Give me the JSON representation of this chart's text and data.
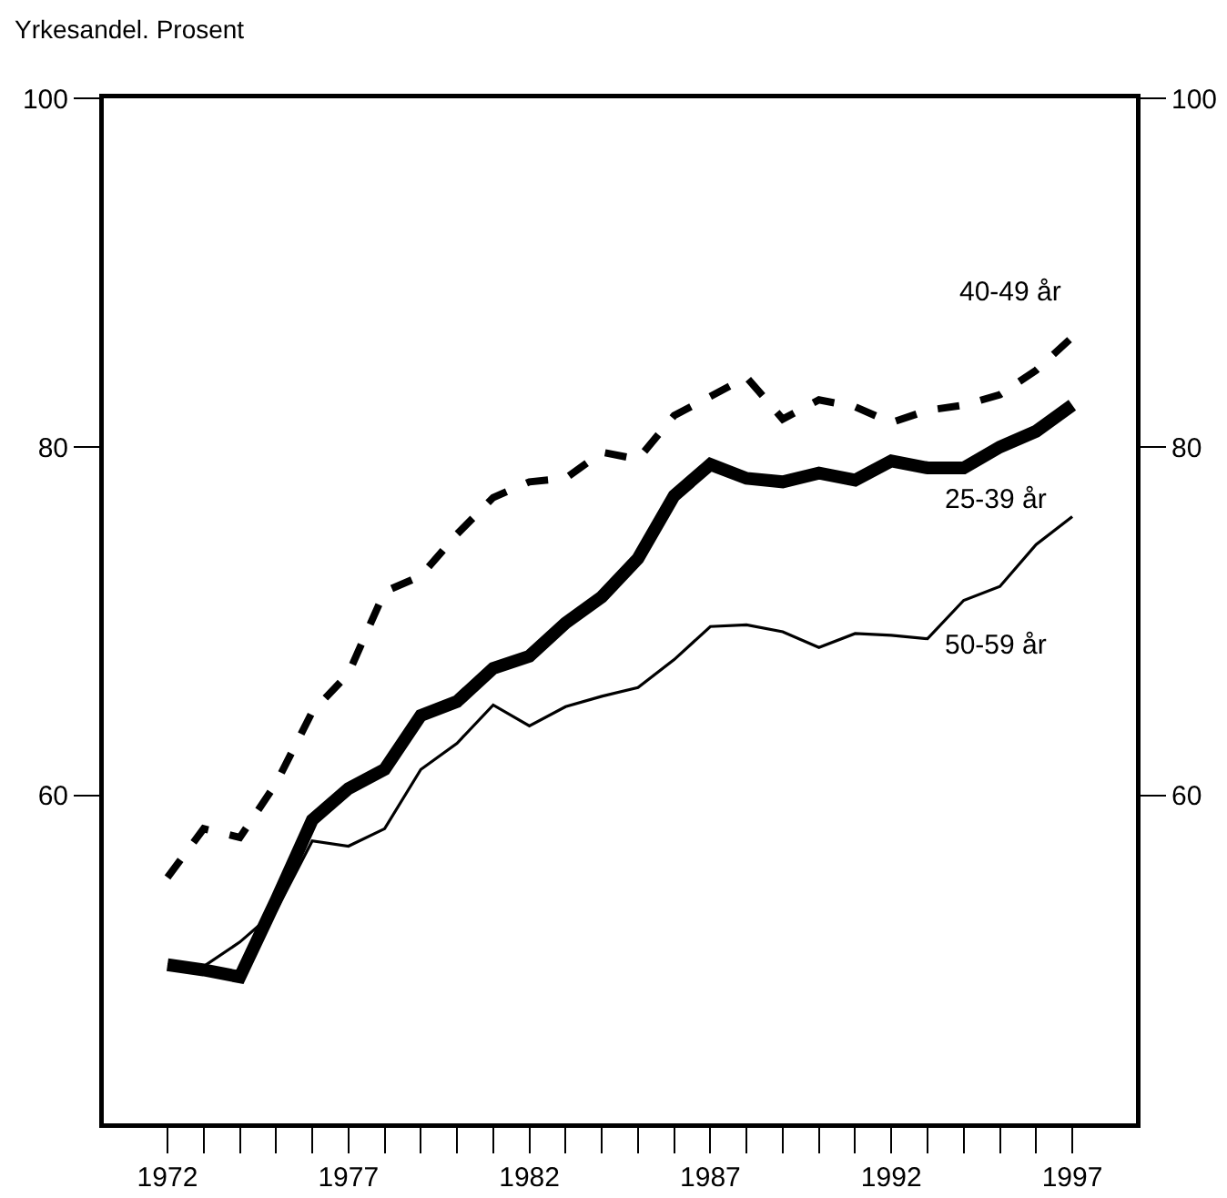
{
  "chart_data": {
    "type": "line",
    "ylabel": "Yrkesandel. Prosent",
    "x": [
      1972,
      1973,
      1974,
      1975,
      1976,
      1977,
      1978,
      1979,
      1980,
      1981,
      1982,
      1983,
      1984,
      1985,
      1986,
      1987,
      1988,
      1989,
      1990,
      1991,
      1992,
      1993,
      1994,
      1995,
      1996,
      1997
    ],
    "xlim": [
      1970.24,
      1998.76
    ],
    "xticks": [
      1972,
      {
        "value": 1973,
        "label": null
      },
      {
        "value": 1974,
        "label": null
      },
      {
        "value": 1975,
        "label": null
      },
      {
        "value": 1976,
        "label": null
      },
      1977,
      {
        "value": 1978,
        "label": null
      },
      {
        "value": 1979,
        "label": null
      },
      {
        "value": 1980,
        "label": null
      },
      {
        "value": 1981,
        "label": null
      },
      1982,
      {
        "value": 1983,
        "label": null
      },
      {
        "value": 1984,
        "label": null
      },
      {
        "value": 1985,
        "label": null
      },
      {
        "value": 1986,
        "label": null
      },
      1987,
      {
        "value": 1988,
        "label": null
      },
      {
        "value": 1989,
        "label": null
      },
      {
        "value": 1990,
        "label": null
      },
      {
        "value": 1991,
        "label": null
      },
      1992,
      {
        "value": 1993,
        "label": null
      },
      {
        "value": 1994,
        "label": null
      },
      {
        "value": 1995,
        "label": null
      },
      {
        "value": 1996,
        "label": null
      },
      1997
    ],
    "ylim": [
      41.2,
      100
    ],
    "yticks": [
      60,
      80,
      100
    ],
    "y2lim": [
      41.2,
      100
    ],
    "y2ticks": [
      60,
      80,
      100
    ],
    "grid": false,
    "legend": false,
    "marker": "none",
    "series": [
      {
        "name": "40-49 år",
        "color": "#000000",
        "line_style": "dashed",
        "values": [
          55.3,
          58.1,
          57.6,
          60.7,
          64.8,
          67.0,
          71.7,
          72.6,
          75.0,
          77.1,
          78.0,
          78.2,
          79.7,
          79.3,
          81.8,
          82.9,
          84.0,
          81.6,
          82.7,
          82.3,
          81.4,
          82.1,
          82.4,
          83.0,
          84.4,
          86.3
        ]
      },
      {
        "name": "25-39 år",
        "color": "#000000",
        "line_style": "solid",
        "values": [
          50.3,
          50.0,
          49.6,
          54.0,
          58.6,
          60.4,
          61.5,
          64.6,
          65.4,
          67.3,
          68.0,
          69.9,
          71.4,
          73.6,
          77.2,
          79.0,
          78.2,
          78.0,
          78.5,
          78.1,
          79.2,
          78.8,
          78.8,
          80.0,
          80.9,
          82.4
        ]
      },
      {
        "name": "50-59 år",
        "color": "#000000",
        "line_style": "solid",
        "values": [
          50.3,
          50.2,
          51.6,
          53.4,
          57.4,
          57.1,
          58.1,
          61.5,
          63.0,
          65.2,
          64.0,
          65.1,
          65.7,
          66.2,
          67.8,
          69.7,
          69.8,
          69.4,
          68.5,
          69.3,
          69.2,
          69.0,
          71.2,
          72.0,
          74.4,
          76.0
        ]
      }
    ]
  }
}
